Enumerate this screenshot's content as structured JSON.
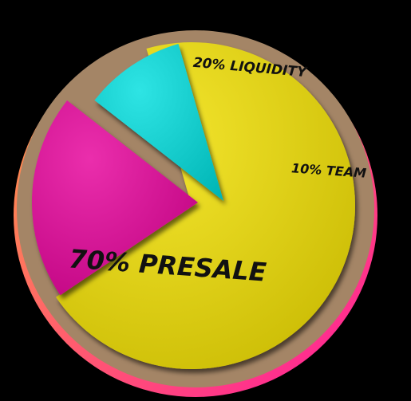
{
  "chart_data": {
    "type": "pie",
    "title": "",
    "exploded": true,
    "slices": [
      {
        "label": "70% PRESALE",
        "value": 70,
        "color": "#f2e000"
      },
      {
        "label": "20% LIQUIDITY",
        "value": 20,
        "color": "#e6009a"
      },
      {
        "label": "10% TEAM",
        "value": 10,
        "color": "#00dede"
      }
    ],
    "colors": {
      "plate": "#a48566",
      "rim_start": "#ffa040",
      "rim_end": "#ff1a9c",
      "background": "#000000"
    }
  }
}
